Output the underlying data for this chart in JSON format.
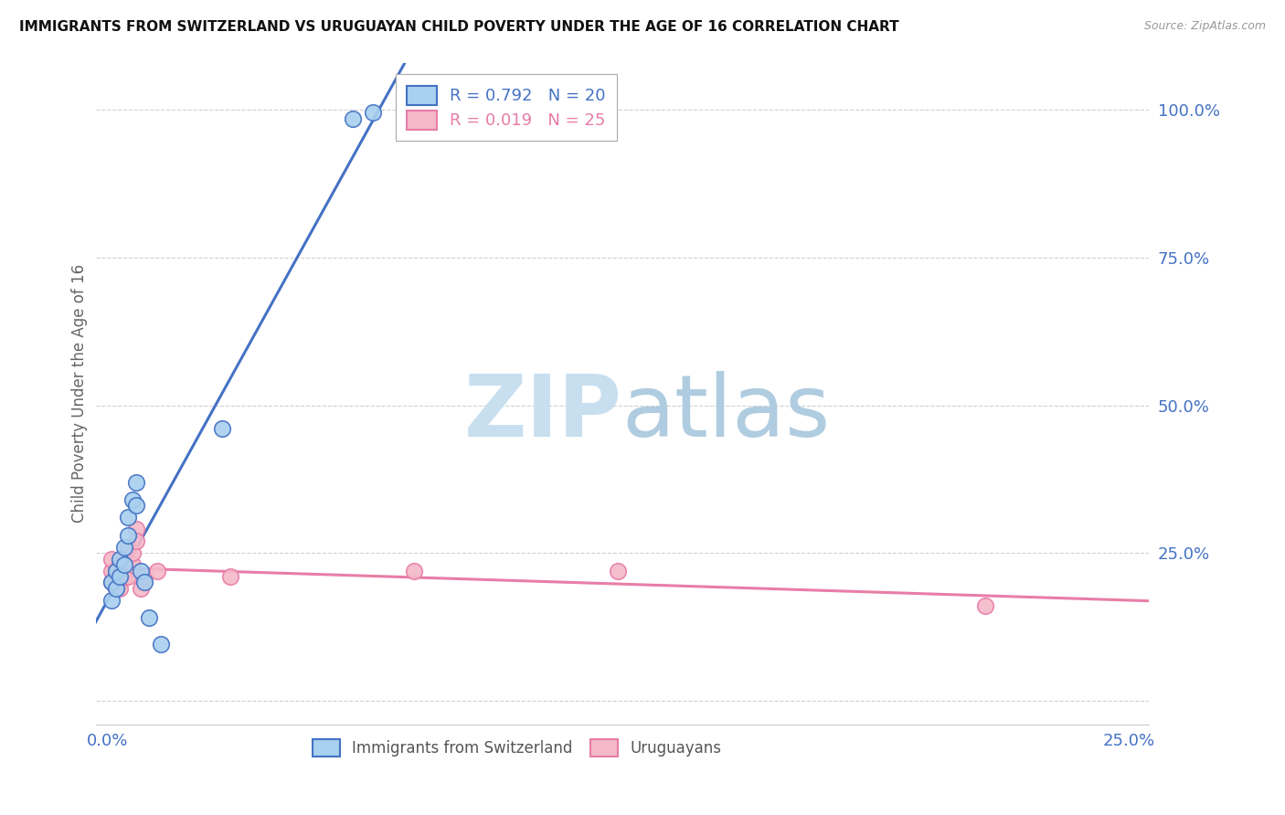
{
  "title": "IMMIGRANTS FROM SWITZERLAND VS URUGUAYAN CHILD POVERTY UNDER THE AGE OF 16 CORRELATION CHART",
  "source": "Source: ZipAtlas.com",
  "ylabel": "Child Poverty Under the Age of 16",
  "xlim": [
    -0.003,
    0.255
  ],
  "ylim": [
    -0.04,
    1.08
  ],
  "yticks": [
    0.0,
    0.25,
    0.5,
    0.75,
    1.0
  ],
  "ytick_labels": [
    "",
    "25.0%",
    "50.0%",
    "75.0%",
    "100.0%"
  ],
  "xticks": [
    0.0,
    0.05,
    0.1,
    0.15,
    0.2,
    0.25
  ],
  "xtick_labels": [
    "0.0%",
    "",
    "",
    "",
    "",
    "25.0%"
  ],
  "swiss_R": 0.792,
  "swiss_N": 20,
  "uruguay_R": 0.019,
  "uruguay_N": 25,
  "swiss_color": "#a8d0ef",
  "uruguay_color": "#f4b8c8",
  "swiss_line_color": "#4472c4",
  "uruguay_line_color": "#e87da8",
  "background_color": "#ffffff",
  "swiss_x": [
    0.001,
    0.001,
    0.002,
    0.002,
    0.003,
    0.003,
    0.004,
    0.004,
    0.005,
    0.005,
    0.006,
    0.007,
    0.007,
    0.008,
    0.009,
    0.01,
    0.013,
    0.06,
    0.065,
    0.028
  ],
  "swiss_y": [
    0.2,
    0.17,
    0.22,
    0.19,
    0.24,
    0.21,
    0.26,
    0.23,
    0.31,
    0.28,
    0.34,
    0.33,
    0.37,
    0.22,
    0.2,
    0.14,
    0.095,
    0.985,
    0.995,
    0.46
  ],
  "uruguay_x": [
    0.001,
    0.001,
    0.001,
    0.002,
    0.002,
    0.002,
    0.003,
    0.003,
    0.003,
    0.004,
    0.004,
    0.004,
    0.005,
    0.005,
    0.006,
    0.006,
    0.007,
    0.007,
    0.008,
    0.009,
    0.012,
    0.03,
    0.075,
    0.125,
    0.215
  ],
  "uruguay_y": [
    0.2,
    0.22,
    0.24,
    0.19,
    0.22,
    0.21,
    0.2,
    0.23,
    0.19,
    0.21,
    0.24,
    0.22,
    0.21,
    0.26,
    0.23,
    0.25,
    0.29,
    0.27,
    0.19,
    0.21,
    0.22,
    0.21,
    0.22,
    0.22,
    0.16
  ],
  "watermark_zip_color": "#c8dff0",
  "watermark_atlas_color": "#b0cce0"
}
